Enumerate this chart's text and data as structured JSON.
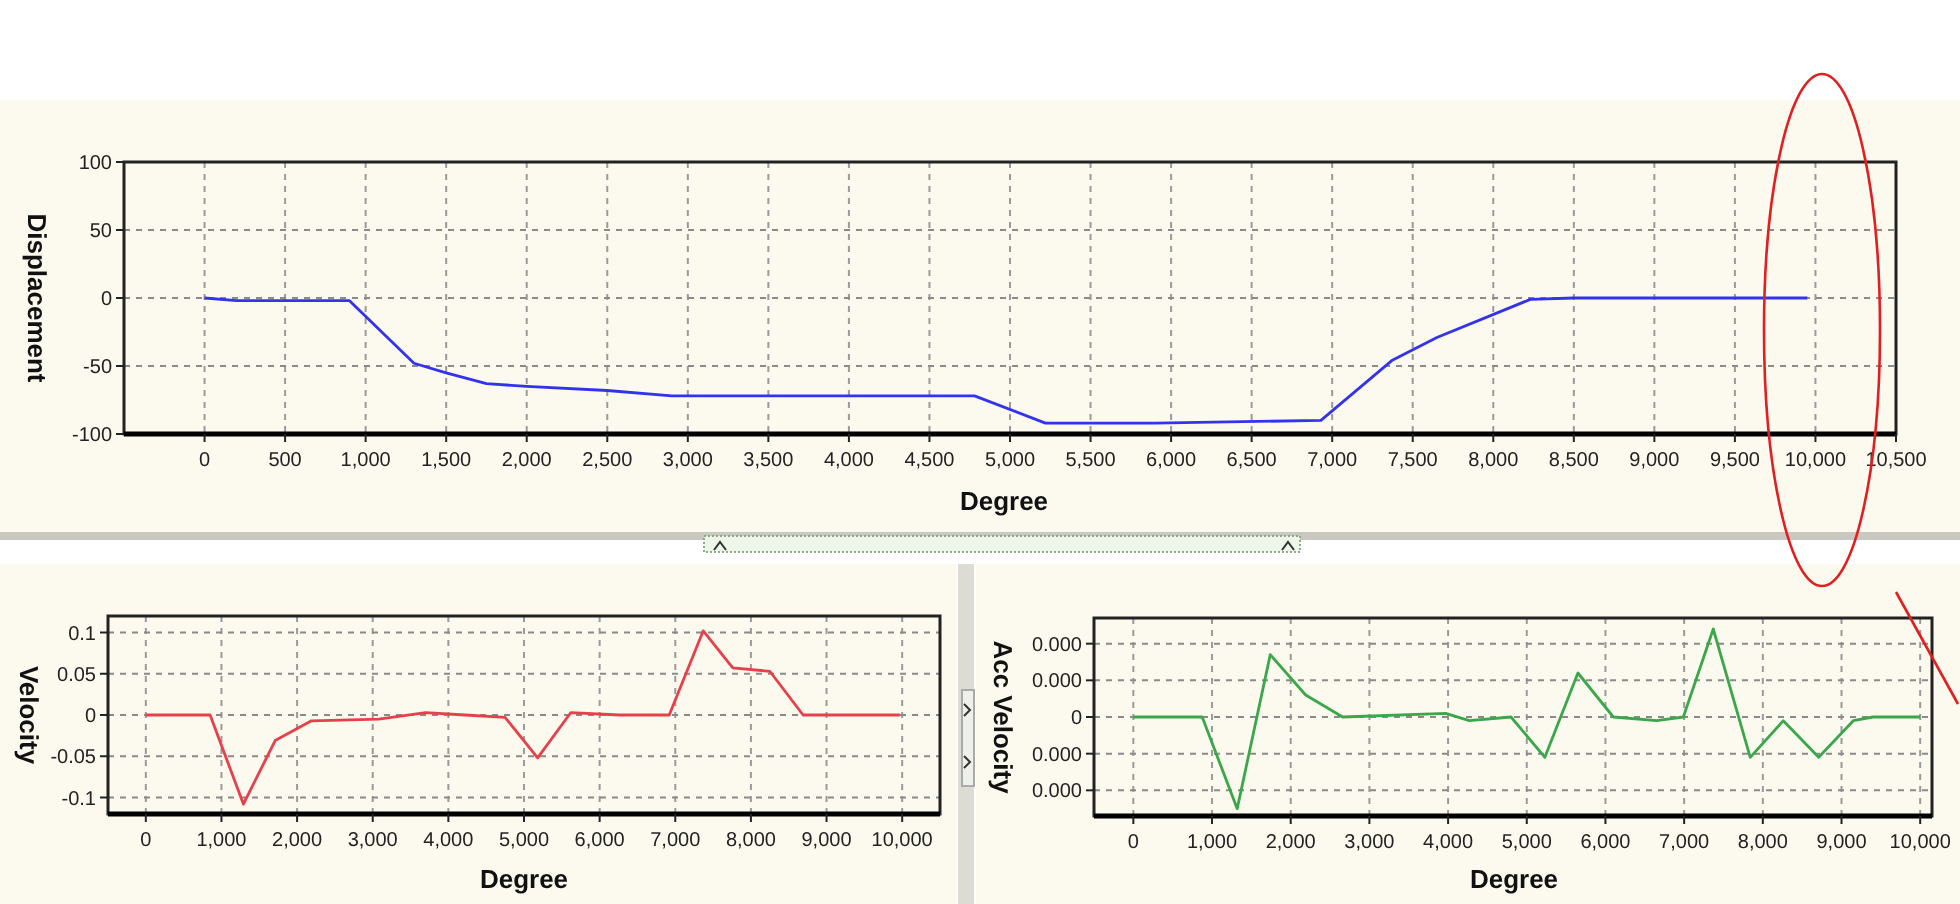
{
  "chart_data": [
    {
      "type": "line",
      "xlabel": "Degree",
      "ylabel": "Displacement",
      "xlim": [
        -500,
        10500
      ],
      "ylim": [
        -100,
        100
      ],
      "xticks": [
        {
          "value": 0,
          "label": "0"
        },
        {
          "value": 500,
          "label": "500"
        },
        {
          "value": 1000,
          "label": "1,000"
        },
        {
          "value": 1500,
          "label": "1,500"
        },
        {
          "value": 2000,
          "label": "2,000"
        },
        {
          "value": 2500,
          "label": "2,500"
        },
        {
          "value": 3000,
          "label": "3,000"
        },
        {
          "value": 3500,
          "label": "3,500"
        },
        {
          "value": 4000,
          "label": "4,000"
        },
        {
          "value": 4500,
          "label": "4,500"
        },
        {
          "value": 5000,
          "label": "5,000"
        },
        {
          "value": 5500,
          "label": "5,500"
        },
        {
          "value": 6000,
          "label": "6,000"
        },
        {
          "value": 6500,
          "label": "6,500"
        },
        {
          "value": 7000,
          "label": "7,000"
        },
        {
          "value": 7500,
          "label": "7,500"
        },
        {
          "value": 8000,
          "label": "8,000"
        },
        {
          "value": 8500,
          "label": "8,500"
        },
        {
          "value": 9000,
          "label": "9,000"
        },
        {
          "value": 9500,
          "label": "9,500"
        },
        {
          "value": 10000,
          "label": "10,000"
        },
        {
          "value": 10500,
          "label": "10,500"
        }
      ],
      "yticks": [
        -100,
        -50,
        0,
        50,
        100
      ],
      "grid": true,
      "marker": "none",
      "series": [
        {
          "color": "#3333ee",
          "x": [
            0,
            200,
            900,
            1300,
            1500,
            1750,
            2000,
            2500,
            2900,
            4780,
            5220,
            5900,
            6930,
            7370,
            7650,
            8230,
            8500,
            9950
          ],
          "values": [
            0,
            -2,
            -2,
            -48,
            -55,
            -63,
            -65,
            -68,
            -72,
            -72,
            -92,
            -92,
            -90,
            -46,
            -29,
            -1,
            0,
            0
          ]
        }
      ]
    },
    {
      "type": "line",
      "xlabel": "Degree",
      "ylabel": "Velocity",
      "xlim": [
        -500,
        10500
      ],
      "ylim": [
        -0.12,
        0.12
      ],
      "xticks": [
        {
          "value": 0,
          "label": "0"
        },
        {
          "value": 1000,
          "label": "1,000"
        },
        {
          "value": 2000,
          "label": "2,000"
        },
        {
          "value": 3000,
          "label": "3,000"
        },
        {
          "value": 4000,
          "label": "4,000"
        },
        {
          "value": 5000,
          "label": "5,000"
        },
        {
          "value": 6000,
          "label": "6,000"
        },
        {
          "value": 7000,
          "label": "7,000"
        },
        {
          "value": 8000,
          "label": "8,000"
        },
        {
          "value": 9000,
          "label": "9,000"
        },
        {
          "value": 10000,
          "label": "10,000"
        }
      ],
      "yticks": [
        -0.1,
        -0.05,
        0,
        0.05,
        0.1
      ],
      "grid": true,
      "marker": "none",
      "series": [
        {
          "color": "#e8404a",
          "x": [
            0,
            850,
            1290,
            1710,
            2190,
            3080,
            3700,
            4220,
            4750,
            5180,
            5620,
            6260,
            6920,
            7370,
            7760,
            8250,
            8690,
            9970
          ],
          "values": [
            0,
            0,
            -0.108,
            -0.031,
            -0.007,
            -0.005,
            0.003,
            0,
            -0.003,
            -0.052,
            0.003,
            0,
            0,
            0.102,
            0.057,
            0.053,
            0,
            0
          ]
        }
      ]
    },
    {
      "type": "line",
      "xlabel": "Degree",
      "ylabel": "Acc Velocity",
      "xlim": [
        -500,
        10150
      ],
      "ylim": [
        -0.00027,
        0.00027
      ],
      "xticks": [
        {
          "value": 0,
          "label": "0"
        },
        {
          "value": 1000,
          "label": "1,000"
        },
        {
          "value": 2000,
          "label": "2,000"
        },
        {
          "value": 3000,
          "label": "3,000"
        },
        {
          "value": 4000,
          "label": "4,000"
        },
        {
          "value": 5000,
          "label": "5,000"
        },
        {
          "value": 6000,
          "label": "6,000"
        },
        {
          "value": 7000,
          "label": "7,000"
        },
        {
          "value": 8000,
          "label": "8,000"
        },
        {
          "value": 9000,
          "label": "9,000"
        },
        {
          "value": 10000,
          "label": "10,000"
        }
      ],
      "yticks": [
        {
          "value": -0.0002,
          "label": "0.000"
        },
        {
          "value": -0.0001,
          "label": "0.000"
        },
        0,
        {
          "value": 0.0001,
          "label": "0.000"
        },
        {
          "value": 0.0002,
          "label": "0.000"
        }
      ],
      "grid": true,
      "marker": "none",
      "series": [
        {
          "color": "#3aa84a",
          "x": [
            0,
            875,
            1320,
            1740,
            2190,
            2660,
            3970,
            4270,
            4800,
            5230,
            5650,
            6100,
            6650,
            6990,
            7370,
            7840,
            8260,
            8710,
            9150,
            9400,
            10000
          ],
          "values": [
            0,
            0,
            -0.00025,
            0.00017,
            6e-05,
            0,
            1e-05,
            -1e-05,
            0,
            -0.00011,
            0.00012,
            0,
            -1e-05,
            0,
            0.00024,
            -0.00011,
            -1e-05,
            -0.00011,
            -1e-05,
            0,
            0
          ]
        }
      ]
    }
  ]
}
